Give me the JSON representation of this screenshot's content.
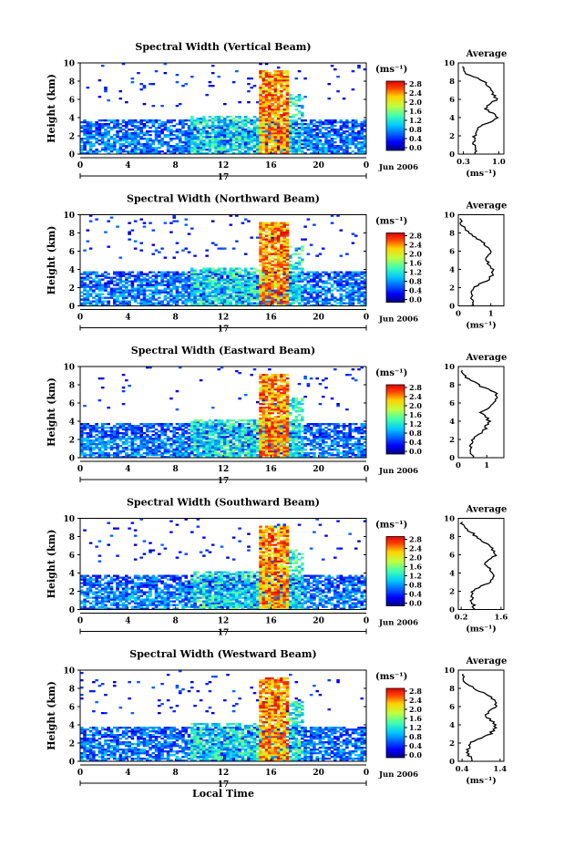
{
  "chart_data": [
    {
      "type": "heatmap",
      "title": "Spectral Width (Vertical Beam)",
      "ylabel": "Height (km)",
      "xlabel": "",
      "x_ticks": [
        "0",
        "4",
        "8",
        "12",
        "16",
        "20",
        "0"
      ],
      "y_ticks": [
        "0",
        "2",
        "4",
        "6",
        "8",
        "10"
      ],
      "xlim": [
        0,
        24
      ],
      "ylim": [
        0,
        10
      ],
      "date_tick": "17",
      "date_label": "Jun 2006",
      "colorbar": {
        "unit": "(ms⁻¹)",
        "ticks": [
          "0.0",
          "0.4",
          "0.8",
          "1.2",
          "1.6",
          "2.0",
          "2.4",
          "2.8"
        ]
      },
      "average": {
        "title": "Average",
        "xlabel": "(ms⁻¹)",
        "x_ticks": [
          "0.3",
          "1.0"
        ],
        "xlim": [
          0.2,
          1.1
        ],
        "heights": [
          0,
          1,
          2,
          3,
          4,
          5,
          6,
          7,
          8,
          9,
          9.6
        ],
        "values": [
          0.55,
          0.5,
          0.52,
          0.62,
          1.0,
          0.72,
          0.95,
          0.85,
          0.7,
          0.3,
          0.3
        ]
      }
    },
    {
      "type": "heatmap",
      "title": "Spectral Width (Northward Beam)",
      "ylabel": "Height (km)",
      "xlabel": "",
      "x_ticks": [
        "0",
        "4",
        "8",
        "12",
        "16",
        "20",
        "0"
      ],
      "y_ticks": [
        "0",
        "2",
        "4",
        "6",
        "8",
        "10"
      ],
      "xlim": [
        0,
        24
      ],
      "ylim": [
        0,
        10
      ],
      "date_tick": "17",
      "date_label": "Jun 2006",
      "colorbar": {
        "unit": "(ms⁻¹)",
        "ticks": [
          "0.0",
          "0.4",
          "0.8",
          "1.2",
          "1.6",
          "2.0",
          "2.4",
          "2.8"
        ]
      },
      "average": {
        "title": "Average",
        "xlabel": "(ms⁻¹)",
        "x_ticks": [
          "0",
          "1"
        ],
        "xlim": [
          0,
          1.4
        ],
        "heights": [
          0,
          1,
          2,
          3,
          4,
          5,
          6,
          7,
          8,
          9,
          9.6
        ],
        "values": [
          0.45,
          0.4,
          0.45,
          1.0,
          1.05,
          0.85,
          1.0,
          0.75,
          0.35,
          0.1,
          0.1
        ]
      }
    },
    {
      "type": "heatmap",
      "title": "Spectral Width (Eastward Beam)",
      "ylabel": "Height (km)",
      "xlabel": "",
      "x_ticks": [
        "0",
        "4",
        "8",
        "12",
        "16",
        "20",
        "0"
      ],
      "y_ticks": [
        "0",
        "2",
        "4",
        "6",
        "8",
        "10"
      ],
      "xlim": [
        0,
        24
      ],
      "ylim": [
        0,
        10
      ],
      "date_tick": "17",
      "date_label": "Jun 2006",
      "colorbar": {
        "unit": "(ms⁻¹)",
        "ticks": [
          "0.0",
          "0.4",
          "0.8",
          "1.2",
          "1.6",
          "2.0",
          "2.4",
          "2.8"
        ]
      },
      "average": {
        "title": "Average",
        "xlabel": "",
        "x_ticks": [
          "0",
          "1"
        ],
        "xlim": [
          0,
          1.6
        ],
        "heights": [
          0,
          1,
          2,
          3,
          4,
          5,
          6,
          7,
          8,
          9,
          9.6
        ],
        "values": [
          0.5,
          0.45,
          0.5,
          0.9,
          1.1,
          0.8,
          1.3,
          1.35,
          0.7,
          0.2,
          0.15
        ]
      }
    },
    {
      "type": "heatmap",
      "title": "Spectral Width (Southward Beam)",
      "ylabel": "Height (km)",
      "xlabel": "",
      "x_ticks": [
        "0",
        "4",
        "8",
        "12",
        "16",
        "20",
        "0"
      ],
      "y_ticks": [
        "0",
        "2",
        "4",
        "6",
        "8",
        "10"
      ],
      "xlim": [
        0,
        24
      ],
      "ylim": [
        0,
        10
      ],
      "date_tick": "17",
      "date_label": "Jun 2006",
      "colorbar": {
        "unit": "(ms⁻¹)",
        "ticks": [
          "0.0",
          "0.4",
          "0.8",
          "1.2",
          "1.6",
          "2.0",
          "2.4",
          "2.8"
        ]
      },
      "average": {
        "title": "Average",
        "xlabel": "(ms⁻¹)",
        "x_ticks": [
          "0.2",
          "1.6"
        ],
        "xlim": [
          0.1,
          1.7
        ],
        "heights": [
          0,
          1,
          2,
          3,
          4,
          5,
          6,
          7,
          8,
          9,
          9.6
        ],
        "values": [
          0.7,
          0.55,
          0.6,
          1.2,
          1.35,
          1.05,
          1.4,
          1.2,
          0.75,
          0.3,
          0.2
        ]
      }
    },
    {
      "type": "heatmap",
      "title": "Spectral Width (Westward Beam)",
      "ylabel": "Height (km)",
      "xlabel": "Local Time",
      "x_ticks": [
        "0",
        "4",
        "8",
        "12",
        "16",
        "20",
        "0"
      ],
      "y_ticks": [
        "0",
        "2",
        "4",
        "6",
        "8",
        "10"
      ],
      "xlim": [
        0,
        24
      ],
      "ylim": [
        0,
        10
      ],
      "date_tick": "17",
      "date_label": "Jun 2006",
      "colorbar": {
        "unit": "(ms⁻¹)",
        "ticks": [
          "0.0",
          "0.4",
          "0.8",
          "1.2",
          "1.6",
          "2.0",
          "2.4",
          "2.8"
        ]
      },
      "average": {
        "title": "Average",
        "xlabel": "(ms⁻¹)",
        "x_ticks": [
          "0.4",
          "1.4"
        ],
        "xlim": [
          0.3,
          1.5
        ],
        "heights": [
          0,
          1,
          2,
          3,
          4,
          5,
          6,
          7,
          8,
          9,
          9.6
        ],
        "values": [
          0.65,
          0.55,
          0.6,
          1.15,
          1.3,
          1.0,
          1.3,
          1.2,
          0.7,
          0.4,
          0.45
        ]
      }
    }
  ]
}
